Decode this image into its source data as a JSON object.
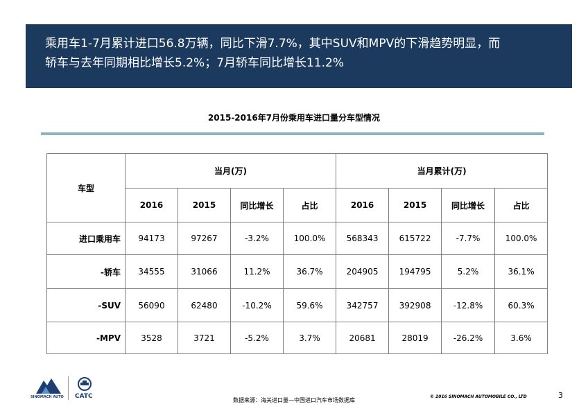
{
  "banner": {
    "line1": "乘用车1-7月累计进口56.8万辆，同比下滑7.7%，其中SUV和MPV的下滑趋势明显，而",
    "line2": "轿车与去年同期相比增长5.2%；7月轿车同比增长11.2%"
  },
  "table": {
    "title": "2015-2016年7月份乘用车进口量分车型情况",
    "type_header": "车型",
    "group_month": "当月(万)",
    "group_cumulative": "当月累计(万)",
    "sub_headers": [
      "2016",
      "2015",
      "同比增长",
      "占比",
      "2016",
      "2015",
      "同比增长",
      "占比"
    ],
    "rows": [
      {
        "label": "进口乘用车",
        "cells": [
          "94173",
          "97267",
          "-3.2%",
          "100.0%",
          "568343",
          "615722",
          "-7.7%",
          "100.0%"
        ]
      },
      {
        "label": "-轿车",
        "cells": [
          "34555",
          "31066",
          "11.2%",
          "36.7%",
          "204905",
          "194795",
          "5.2%",
          "36.1%"
        ]
      },
      {
        "label": "-SUV",
        "cells": [
          "56090",
          "62480",
          "-10.2%",
          "59.6%",
          "342757",
          "392908",
          "-12.8%",
          "60.3%"
        ]
      },
      {
        "label": "-MPV",
        "cells": [
          "3528",
          "3721",
          "-5.2%",
          "3.7%",
          "20681",
          "28019",
          "-26.2%",
          "3.6%"
        ]
      }
    ]
  },
  "footer": {
    "sinomach_logo_text": "SINOMACH AUTO",
    "catc_logo_text": "CATC",
    "source": "数据来源：海关进口量—中国进口汽车市场数据库",
    "copyright": "© 2016 SINOMACH AUTOMOBILE CO., LTD",
    "page_number": "3"
  },
  "colors": {
    "banner_bg": "#1b3a5e",
    "title_rule": "#8fb2c2",
    "logo_blue": "#1d3d73"
  }
}
